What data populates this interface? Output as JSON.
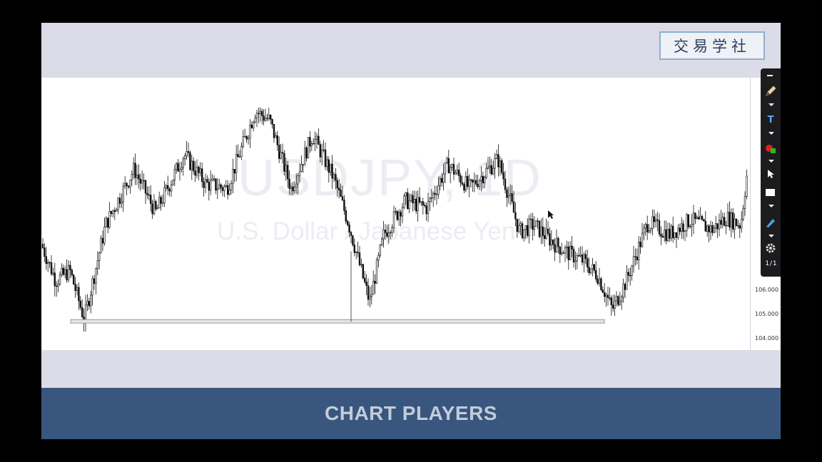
{
  "logo": {
    "text": "交易学社"
  },
  "chart": {
    "symbol_watermark": "USDJPY, 1D",
    "description_watermark": "U.S. Dollar / Japanese Yen",
    "price_ticks": [
      "106.000",
      "105.000",
      "104.000"
    ],
    "support_line_price": 104.7
  },
  "chart_data": {
    "type": "candlestick",
    "title": "",
    "yaxis_ticks": [
      106,
      105,
      104
    ],
    "close_path": [
      [
        0,
        107.9
      ],
      [
        20,
        106.4
      ],
      [
        40,
        106.8
      ],
      [
        60,
        104.8
      ],
      [
        90,
        108.7
      ],
      [
        130,
        111.0
      ],
      [
        160,
        109.2
      ],
      [
        200,
        111.6
      ],
      [
        230,
        110.4
      ],
      [
        260,
        110.2
      ],
      [
        300,
        113.4
      ],
      [
        320,
        113.0
      ],
      [
        350,
        110.2
      ],
      [
        380,
        112.4
      ],
      [
        410,
        110.6
      ],
      [
        430,
        108.8
      ],
      [
        460,
        105.5
      ],
      [
        480,
        108.3
      ],
      [
        510,
        109.7
      ],
      [
        540,
        109.4
      ],
      [
        570,
        111.2
      ],
      [
        600,
        110.2
      ],
      [
        640,
        111.4
      ],
      [
        670,
        108.4
      ],
      [
        690,
        108.7
      ],
      [
        720,
        107.9
      ],
      [
        740,
        107.5
      ],
      [
        760,
        107.2
      ],
      [
        780,
        106.6
      ],
      [
        800,
        105.2
      ],
      [
        820,
        106.4
      ],
      [
        850,
        108.8
      ],
      [
        880,
        108.3
      ],
      [
        910,
        108.9
      ],
      [
        940,
        108.5
      ],
      [
        960,
        109.0
      ],
      [
        980,
        108.7
      ],
      [
        993,
        111.8
      ]
    ]
  },
  "toolbar": {
    "pencil_icon": "pencil-icon",
    "text_label": "T",
    "page_counter": "1 / 1"
  },
  "banner": {
    "text": "CHART PLAYERS"
  }
}
